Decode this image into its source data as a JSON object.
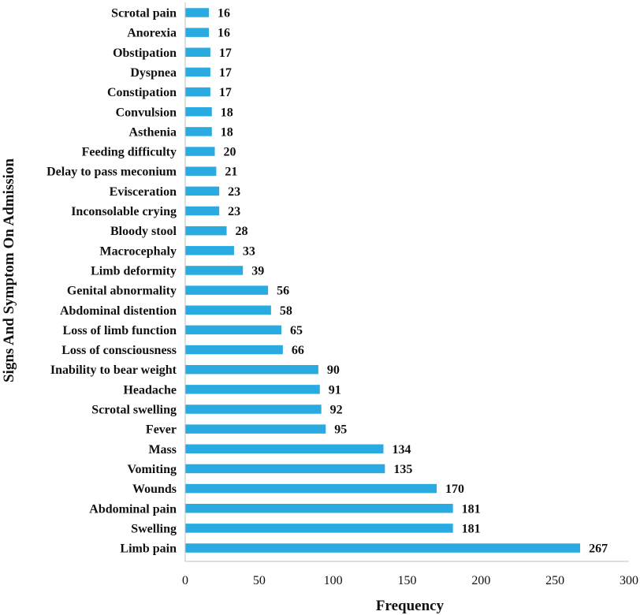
{
  "chart_data": {
    "type": "bar",
    "orientation": "horizontal",
    "xlabel": "Frequency",
    "ylabel": "Signs And Symptom On Admission",
    "xlim": [
      0,
      300
    ],
    "x_ticks": [
      0,
      50,
      100,
      150,
      200,
      250,
      300
    ],
    "grid": false,
    "legend": "none",
    "bar_color": "#29abe2",
    "categories": [
      "Scrotal pain",
      "Anorexia",
      "Obstipation",
      "Dyspnea",
      "Constipation",
      "Convulsion",
      "Asthenia",
      "Feeding difficulty",
      "Delay to pass meconium",
      "Evisceration",
      "Inconsolable crying",
      "Bloody stool",
      "Macrocephaly",
      "Limb deformity",
      "Genital abnormality",
      "Abdominal distention",
      "Loss of limb function",
      "Loss of consciousness",
      "Inability to bear weight",
      "Headache",
      "Scrotal swelling",
      "Fever",
      "Mass",
      "Vomiting",
      "Wounds",
      "Abdominal pain",
      "Swelling",
      "Limb pain"
    ],
    "values": [
      16,
      16,
      17,
      17,
      17,
      18,
      18,
      20,
      21,
      23,
      23,
      28,
      33,
      39,
      56,
      58,
      65,
      66,
      90,
      91,
      92,
      95,
      134,
      135,
      170,
      181,
      181,
      267
    ]
  }
}
